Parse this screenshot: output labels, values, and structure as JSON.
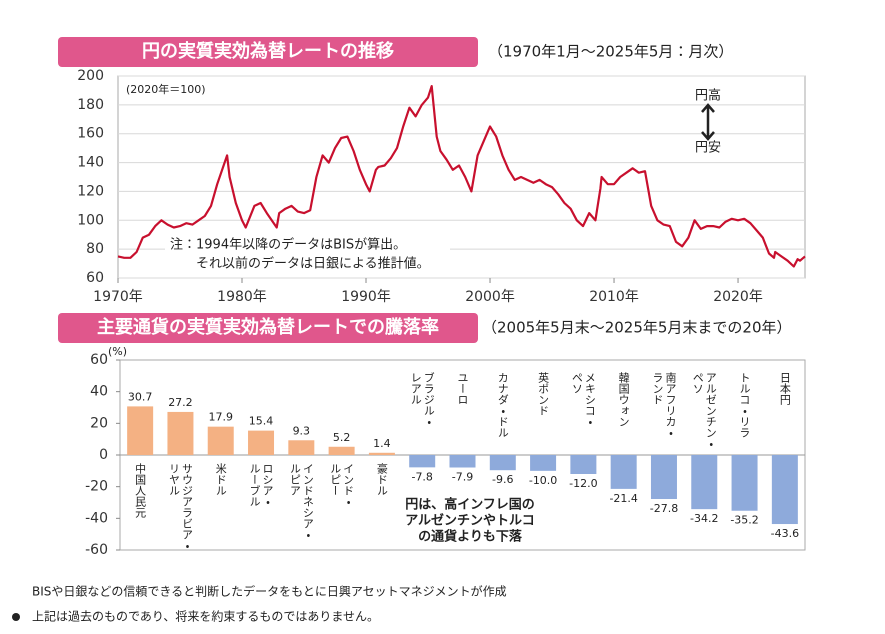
{
  "chart_data": [
    {
      "type": "line",
      "title": "円の実質実効為替レートの推移",
      "subtitle": "（1970年1月～2025年5月：月次）",
      "annotations": {
        "base": "(2020年＝100)",
        "up": "円高",
        "down": "円安",
        "note1": "注：1994年以降のデータはBISが算出。",
        "note2": "それ以前のデータは日銀による推計値。"
      },
      "x": [
        1970,
        1970.5,
        1971,
        1971.5,
        1972,
        1972.5,
        1973,
        1973.5,
        1974,
        1974.5,
        1975,
        1975.5,
        1976,
        1976.5,
        1977,
        1977.5,
        1978,
        1978.8,
        1979,
        1979.5,
        1980,
        1980.3,
        1981,
        1981.5,
        1982,
        1982.8,
        1983,
        1983.5,
        1984,
        1984.5,
        1985,
        1985.5,
        1986,
        1986.5,
        1987,
        1987.5,
        1988,
        1988.5,
        1989,
        1989.5,
        1990,
        1990.3,
        1990.8,
        1991,
        1991.5,
        1992,
        1992.5,
        1993,
        1993.5,
        1994,
        1994.5,
        1995,
        1995.3,
        1995.7,
        1996,
        1996.5,
        1997,
        1997.5,
        1998,
        1998.5,
        1999,
        1999.5,
        2000,
        2000.5,
        2001,
        2001.5,
        2002,
        2002.5,
        2003,
        2003.5,
        2004,
        2004.5,
        2005,
        2005.5,
        2006,
        2006.5,
        2007,
        2007.5,
        2008,
        2008.5,
        2008.9,
        2009,
        2009.5,
        2010,
        2010.5,
        2011,
        2011.5,
        2012,
        2012.5,
        2013,
        2013.5,
        2014,
        2014.5,
        2015,
        2015.5,
        2016,
        2016.5,
        2017,
        2017.5,
        2018,
        2018.5,
        2019,
        2019.5,
        2020,
        2020.5,
        2021,
        2021.5,
        2022,
        2022.5,
        2022.9,
        2023,
        2023.5,
        2024,
        2024.5,
        2024.8,
        2025,
        2025.4
      ],
      "series": [
        {
          "color": "#c8102e",
          "values": [
            75,
            74,
            74,
            78,
            88,
            90,
            96,
            100,
            97,
            95,
            96,
            98,
            97,
            100,
            103,
            110,
            125,
            145,
            130,
            112,
            100,
            95,
            110,
            112,
            105,
            95,
            105,
            108,
            110,
            106,
            105,
            107,
            130,
            145,
            140,
            150,
            157,
            158,
            148,
            135,
            125,
            120,
            135,
            137,
            138,
            143,
            150,
            165,
            178,
            172,
            180,
            185,
            193,
            158,
            148,
            142,
            135,
            138,
            130,
            120,
            145,
            155,
            165,
            158,
            145,
            135,
            128,
            130,
            128,
            126,
            128,
            125,
            123,
            118,
            112,
            108,
            100,
            96,
            105,
            100,
            122,
            130,
            125,
            125,
            130,
            133,
            136,
            133,
            134,
            110,
            100,
            97,
            96,
            85,
            82,
            88,
            100,
            94,
            96,
            96,
            95,
            99,
            101,
            100,
            101,
            98,
            93,
            88,
            77,
            74,
            78,
            75,
            72,
            68,
            73,
            72,
            75
          ]
        }
      ],
      "xlim": [
        1970,
        2025.4
      ],
      "xticks": [
        {
          "value": 1970,
          "label": "1970年"
        },
        {
          "value": 1980,
          "label": "1980年"
        },
        {
          "value": 1990,
          "label": "1990年"
        },
        {
          "value": 2000,
          "label": "2000年"
        },
        {
          "value": 2010,
          "label": "2010年"
        },
        {
          "value": 2020,
          "label": "2020年"
        }
      ],
      "ylim": [
        60,
        200
      ],
      "yticks": [
        60,
        80,
        100,
        120,
        140,
        160,
        180,
        200
      ],
      "grid": true
    },
    {
      "type": "bar",
      "title": "主要通貨の実質実効為替レートでの騰落率",
      "subtitle": "（2005年5月末～2025年5月末までの20年）",
      "y_unit": "(%)",
      "annotation": [
        "円は、高インフレ国の",
        "アルゼンチンやトルコ",
        "の通貨よりも下落"
      ],
      "categories": [
        "中国人民元",
        "サウジアラビア・リヤル",
        "米ドル",
        "ロシア・ルーブル",
        "インドネシア・ルピア",
        "インド・ルピー",
        "豪ドル",
        "ブラジル・レアル",
        "ユーロ",
        "カナダ・ドル",
        "英ポンド",
        "メキシコ・ペソ",
        "韓国ウォン",
        "南アフリカ・ランド",
        "アルゼンチン・ペソ",
        "トルコ・リラ",
        "日本円"
      ],
      "values": [
        30.7,
        27.2,
        17.9,
        15.4,
        9.3,
        5.2,
        1.4,
        -7.8,
        -7.9,
        -9.6,
        -10,
        -12,
        -21.4,
        -27.8,
        -34.2,
        -35.2,
        -43.6
      ],
      "value_labels": [
        "30.7",
        "27.2",
        "17.9",
        "15.4",
        "9.3",
        "5.2",
        "1.4",
        "-7.8",
        "-7.9",
        "-9.6",
        "-10.0",
        "-12.0",
        "-21.4",
        "-27.8",
        "-34.2",
        "-35.2",
        "-43.6"
      ],
      "color_positive": "#f4b183",
      "color_negative": "#8eaadb",
      "ylim": [
        -60,
        60
      ],
      "yticks": [
        -60,
        -40,
        -20,
        0,
        20,
        40,
        60
      ]
    }
  ],
  "footer": {
    "source": "BISや日銀などの信頼できると判断したデータをもとに日興アセットマネジメントが作成",
    "disclaimer": "上記は過去のものであり、将来を約束するものではありません。"
  }
}
